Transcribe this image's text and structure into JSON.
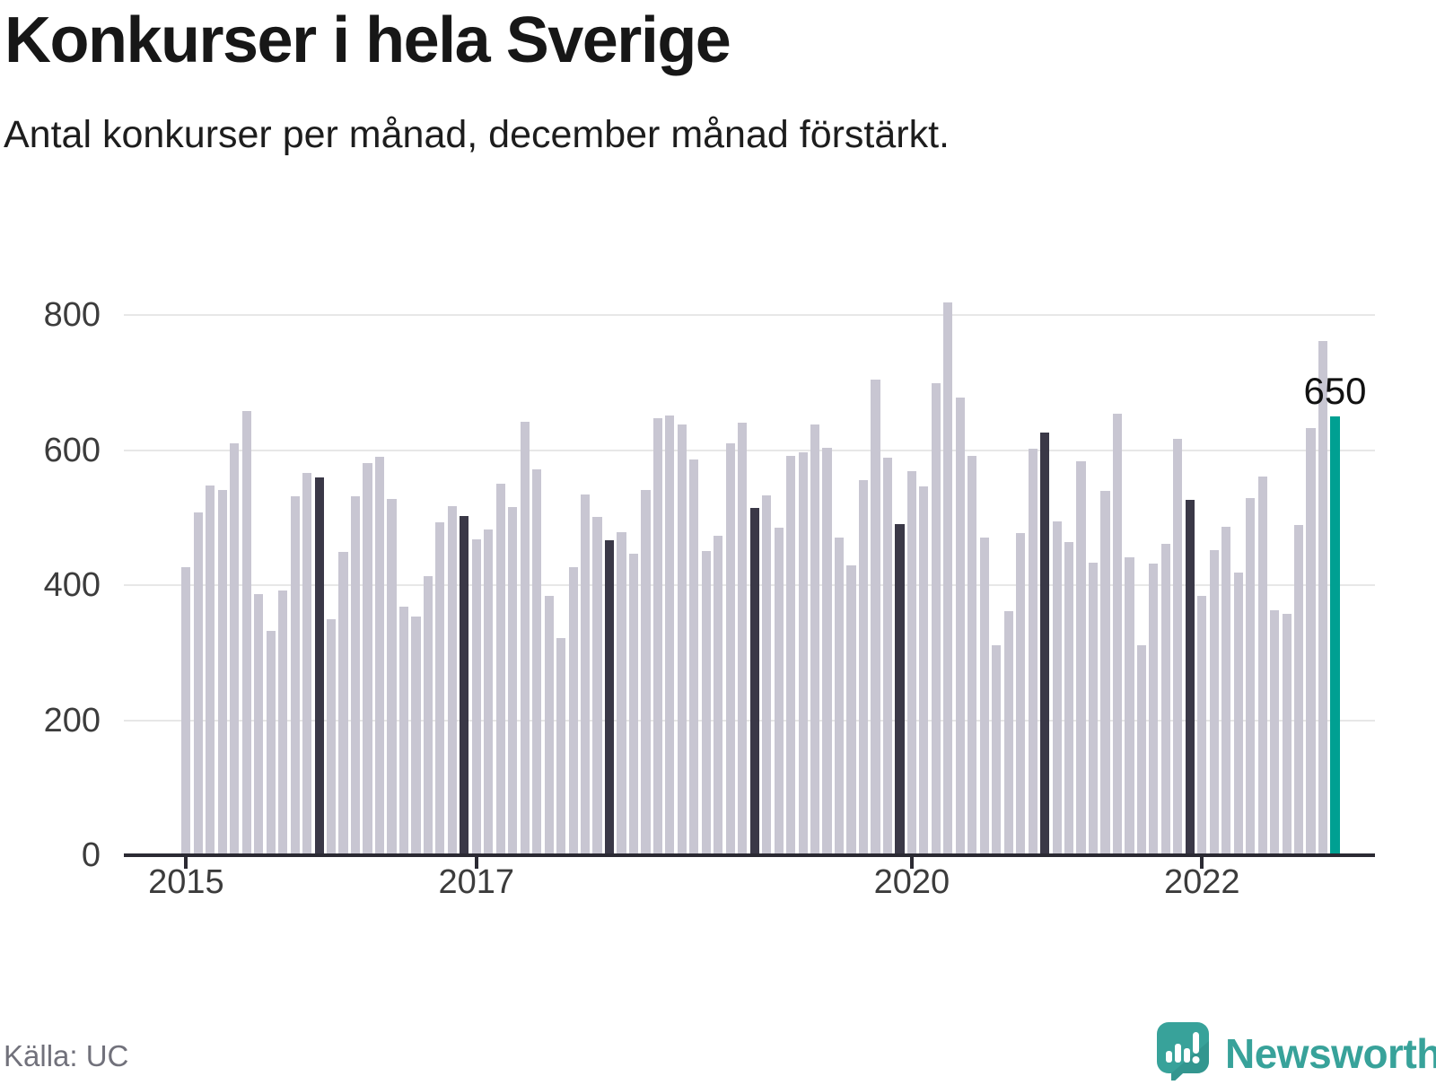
{
  "header": {
    "title": "Konkurser i hela Sverige",
    "subtitle": "Antal konkurser per månad, december månad förstärkt."
  },
  "chart_data": {
    "type": "bar",
    "title": "Konkurser i hela Sverige",
    "subtitle": "Antal konkurser per månad, december månad förstärkt.",
    "ylabel": "Antal konkurser",
    "x_start": "2015-01",
    "x_end": "2022-12",
    "y_ticks": [
      0,
      200,
      400,
      600,
      800
    ],
    "ylim": [
      0,
      870
    ],
    "grid": "horizontal",
    "x_tick_labels": [
      {
        "label": "2015",
        "month_index": 0
      },
      {
        "label": "2017",
        "month_index": 24
      },
      {
        "label": "2020",
        "month_index": 60
      },
      {
        "label": "2022",
        "month_index": 84
      }
    ],
    "december_emphasized": true,
    "annotation": {
      "text": "650",
      "target": "2022-12"
    },
    "values_by_year": {
      "2015": [
        427,
        508,
        548,
        541,
        610,
        658,
        387,
        332,
        392,
        531,
        566,
        560
      ],
      "2016": [
        349,
        449,
        531,
        581,
        590,
        528,
        368,
        353,
        413,
        493,
        517,
        503
      ],
      "2017": [
        468,
        482,
        550,
        515,
        642,
        571,
        384,
        322,
        427,
        534,
        501,
        466
      ],
      "2018": [
        479,
        447,
        541,
        647,
        651,
        638,
        586,
        450,
        473,
        610,
        641,
        514
      ],
      "2019": [
        533,
        485,
        591,
        597,
        638,
        603,
        471,
        429,
        556,
        704,
        589,
        491
      ],
      "2020": [
        569,
        546,
        699,
        818,
        678,
        591,
        470,
        311,
        362,
        477,
        602,
        626
      ],
      "2021": [
        495,
        464,
        584,
        433,
        540,
        654,
        441,
        311,
        432,
        461,
        616,
        526
      ],
      "2022": [
        384,
        452,
        486,
        419,
        529,
        561,
        363,
        358,
        489,
        632,
        762,
        650
      ]
    }
  },
  "colors": {
    "bar_default": "#c8c6d2",
    "bar_december": "#3a3847",
    "bar_latest": "#00a092",
    "axis": "#2b2a33",
    "gridline": "#e7e7e7",
    "annotation_text": "#111111",
    "brand_teal": "#38a29a"
  },
  "footer": {
    "source": "Källa: UC",
    "brand": "Newsworthy"
  }
}
